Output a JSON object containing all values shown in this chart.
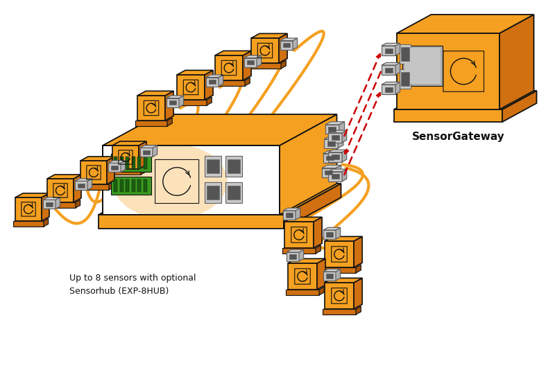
{
  "background_color": "#ffffff",
  "orange": "#F5A020",
  "orange_dark": "#D07010",
  "orange_darker": "#A05008",
  "gray": "#A0A0A0",
  "gray_dark": "#606060",
  "gray_light": "#C8C8C8",
  "gray_med": "#B0B0B0",
  "green": "#3A9A20",
  "green_dark": "#1A6010",
  "black": "#111111",
  "red_arrow": "#CC0000",
  "label_sensorgateway": "SensorGateway",
  "label_caption": "Up to 8 sensors with optional\nSensorhub (EXP-8HUB)"
}
